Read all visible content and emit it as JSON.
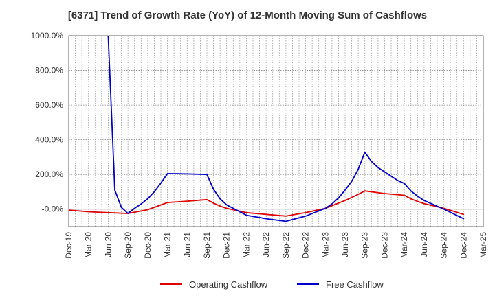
{
  "chart_data": {
    "type": "line",
    "title": "[6371]  Trend of Growth Rate (YoY) of 12-Month Moving Sum of Cashflows",
    "xlabel": "",
    "ylabel": "",
    "x_ticks": [
      "Dec-19",
      "Mar-20",
      "Jun-20",
      "Sep-20",
      "Dec-20",
      "Mar-21",
      "Jun-21",
      "Sep-21",
      "Dec-21",
      "Mar-22",
      "Jun-22",
      "Sep-22",
      "Dec-22",
      "Mar-23",
      "Jun-23",
      "Sep-23",
      "Dec-23",
      "Mar-24",
      "Jun-24",
      "Sep-24",
      "Dec-24",
      "Mar-25"
    ],
    "y_ticks": [
      "-0.0%",
      "200.0%",
      "400.0%",
      "600.0%",
      "800.0%",
      "1000.0%"
    ],
    "ylim": [
      -100,
      1000
    ],
    "y_tick_values": [
      0,
      200,
      400,
      600,
      800,
      1000
    ],
    "grid": true,
    "legend_position": "bottom-center",
    "series": [
      {
        "name": "Operating Cashflow",
        "color": "#e00000",
        "x": [
          "Dec-19",
          "Mar-20",
          "Jun-20",
          "Sep-20",
          "Dec-20",
          "Mar-21",
          "Jun-21",
          "Sep-21",
          "Oct-21",
          "Nov-21",
          "Dec-21",
          "Mar-22",
          "Jun-22",
          "Sep-22",
          "Dec-22",
          "Mar-23",
          "Jun-23",
          "Aug-23",
          "Sep-23",
          "Dec-23",
          "Mar-24",
          "Apr-24",
          "May-24",
          "Jun-24",
          "Sep-24",
          "Dec-24"
        ],
        "values": [
          -5,
          -15,
          -20,
          -25,
          -3,
          38,
          46,
          55,
          35,
          18,
          5,
          -20,
          -30,
          -40,
          -20,
          5,
          50,
          85,
          105,
          90,
          80,
          60,
          45,
          32,
          5,
          -30
        ]
      },
      {
        "name": "Free Cashflow",
        "color": "#0000cc",
        "x": [
          "Jun-20",
          "Jul-20",
          "Aug-20",
          "Sep-20",
          "Oct-20",
          "Nov-20",
          "Dec-20",
          "Jan-21",
          "Feb-21",
          "Mar-21",
          "Jun-21",
          "Sep-21",
          "Oct-21",
          "Nov-21",
          "Dec-21",
          "Mar-22",
          "Jun-22",
          "Sep-22",
          "Dec-22",
          "Mar-23",
          "Apr-23",
          "May-23",
          "Jun-23",
          "Jul-23",
          "Aug-23",
          "Sep-23",
          "Oct-23",
          "Nov-23",
          "Dec-23",
          "Jan-24",
          "Feb-24",
          "Mar-24",
          "Apr-24",
          "May-24",
          "Jun-24",
          "Sep-24",
          "Dec-24"
        ],
        "values": [
          1000,
          110,
          10,
          -25,
          5,
          30,
          60,
          100,
          150,
          205,
          203,
          200,
          115,
          60,
          25,
          -35,
          -55,
          -70,
          -40,
          5,
          30,
          65,
          110,
          160,
          230,
          328,
          275,
          240,
          215,
          190,
          165,
          148,
          105,
          75,
          50,
          0,
          -55
        ]
      }
    ]
  }
}
